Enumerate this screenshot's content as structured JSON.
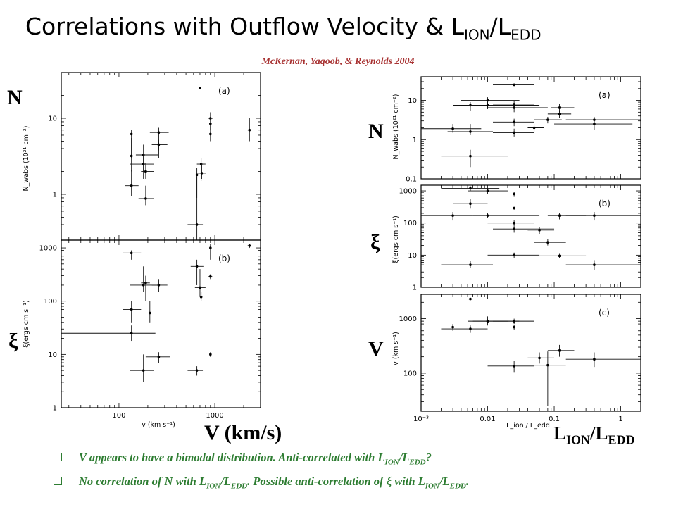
{
  "slide": {
    "title_main": "Correlations with Outflow Velocity & L",
    "title_sub1": "ION",
    "title_slash": "/L",
    "title_sub2": "EDD",
    "credit": "McKernan,  Yaqoob, & Reynolds 2004",
    "label_N_left": "N",
    "label_xi_left": "ξ",
    "label_N_right": "N",
    "label_xi_right": "ξ",
    "label_V_right": "V",
    "xlabel_left_big": "V (km/s)",
    "xlabel_right_big_main": "L",
    "xlabel_right_big_sub1": "ION",
    "xlabel_right_big_slash": "/L",
    "xlabel_right_big_sub2": "EDD",
    "bullets": [
      {
        "pre": "V appears to have a bimodal distribution. Anti-correlated with L",
        "s1": "ION",
        "mid": "/L",
        "s2": "EDD",
        "post": "?"
      },
      {
        "pre": "No correlation of N with L",
        "s1": "ION",
        "mid": "/L",
        "s2": "EDD",
        "post": ". Possible anti-correlation of ξ with L",
        "s3": "ION",
        "mid2": "/L",
        "s4": "EDD",
        "end": "."
      }
    ]
  },
  "chart_data": [
    {
      "type": "scatter",
      "panel": "(a)",
      "xlabel": "v (km s⁻¹)",
      "ylabel": "N_wabs (10²¹ cm⁻²)",
      "xscale": "log",
      "yscale": "log",
      "xlim": [
        25,
        3000
      ],
      "ylim": [
        0.25,
        40
      ],
      "xticks": [
        {
          "v": 100,
          "label": "100"
        },
        {
          "v": 1000,
          "label": "1000"
        }
      ],
      "yticks": [
        {
          "v": 1,
          "label": "1"
        },
        {
          "v": 10,
          "label": "10"
        }
      ],
      "points": [
        {
          "x": 135,
          "y": 6.2,
          "xlo": 115,
          "xhi": 160,
          "ylo": 3.0,
          "yhi": 7.0
        },
        {
          "x": 135,
          "y": 3.2,
          "xlo": 25,
          "xhi": 240,
          "ylo": 2.0,
          "yhi": 5.5
        },
        {
          "x": 135,
          "y": 1.3,
          "xlo": 115,
          "xhi": 160,
          "ylo": 0.95,
          "yhi": 2.1
        },
        {
          "x": 180,
          "y": 3.3,
          "xlo": 150,
          "xhi": 260,
          "ylo": 2.0,
          "yhi": 4.5
        },
        {
          "x": 180,
          "y": 2.5,
          "xlo": 130,
          "xhi": 230,
          "ylo": 1.6,
          "yhi": 3.4
        },
        {
          "x": 190,
          "y": 0.88,
          "xlo": 160,
          "xhi": 230,
          "ylo": 0.72,
          "yhi": 1.3
        },
        {
          "x": 190,
          "y": 2.0,
          "xlo": 170,
          "xhi": 230,
          "ylo": 1.6,
          "yhi": 2.6
        },
        {
          "x": 260,
          "y": 6.5,
          "xlo": 210,
          "xhi": 330,
          "ylo": 3.8,
          "yhi": 7.5
        },
        {
          "x": 260,
          "y": 4.5,
          "xlo": 220,
          "xhi": 320,
          "ylo": 3.0,
          "yhi": 5.2
        },
        {
          "x": 650,
          "y": 0.4,
          "xlo": 520,
          "xhi": 750,
          "ylo": 0.25,
          "yhi": 1.7
        },
        {
          "x": 650,
          "y": 1.8,
          "xlo": 500,
          "xhi": 750,
          "ylo": 0.9,
          "yhi": 2.2
        },
        {
          "x": 700,
          "y": 25,
          "xlo": 690,
          "xhi": 710,
          "ylo": 24,
          "yhi": 26
        },
        {
          "x": 720,
          "y": 2.5,
          "xlo": 650,
          "xhi": 800,
          "ylo": 1.5,
          "yhi": 3.0
        },
        {
          "x": 730,
          "y": 1.9,
          "xlo": 650,
          "xhi": 810,
          "ylo": 1.6,
          "yhi": 2.6
        },
        {
          "x": 900,
          "y": 10,
          "xlo": 850,
          "xhi": 950,
          "ylo": 7,
          "yhi": 12
        },
        {
          "x": 900,
          "y": 8.5,
          "xlo": 880,
          "xhi": 920,
          "ylo": 7,
          "yhi": 10
        },
        {
          "x": 900,
          "y": 6.2,
          "xlo": 880,
          "xhi": 920,
          "ylo": 5,
          "yhi": 7
        },
        {
          "x": 2300,
          "y": 7,
          "xlo": 2200,
          "xhi": 2400,
          "ylo": 5,
          "yhi": 10
        }
      ]
    },
    {
      "type": "scatter",
      "panel": "(b)",
      "xlabel": "v (km s⁻¹)",
      "ylabel": "ξ(ergs cm s⁻¹)",
      "xscale": "log",
      "yscale": "log",
      "xlim": [
        25,
        3000
      ],
      "ylim": [
        1,
        1400
      ],
      "xticks": [
        {
          "v": 100,
          "label": "100"
        },
        {
          "v": 1000,
          "label": "1000"
        }
      ],
      "yticks": [
        {
          "v": 1,
          "label": "1"
        },
        {
          "v": 10,
          "label": "10"
        },
        {
          "v": 100,
          "label": "100"
        },
        {
          "v": 1000,
          "label": "1000"
        }
      ],
      "points": [
        {
          "x": 135,
          "y": 800,
          "xlo": 110,
          "xhi": 170,
          "ylo": 600,
          "yhi": 900
        },
        {
          "x": 135,
          "y": 70,
          "xlo": 110,
          "xhi": 170,
          "ylo": 40,
          "yhi": 100
        },
        {
          "x": 135,
          "y": 25,
          "xlo": 25,
          "xhi": 240,
          "ylo": 18,
          "yhi": 35
        },
        {
          "x": 180,
          "y": 5,
          "xlo": 130,
          "xhi": 230,
          "ylo": 3,
          "yhi": 10
        },
        {
          "x": 180,
          "y": 200,
          "xlo": 130,
          "xhi": 260,
          "ylo": 150,
          "yhi": 450
        },
        {
          "x": 190,
          "y": 220,
          "xlo": 170,
          "xhi": 210,
          "ylo": 100,
          "yhi": 300
        },
        {
          "x": 210,
          "y": 60,
          "xlo": 160,
          "xhi": 260,
          "ylo": 40,
          "yhi": 100
        },
        {
          "x": 260,
          "y": 200,
          "xlo": 220,
          "xhi": 320,
          "ylo": 150,
          "yhi": 260
        },
        {
          "x": 260,
          "y": 9,
          "xlo": 190,
          "xhi": 340,
          "ylo": 7,
          "yhi": 11
        },
        {
          "x": 650,
          "y": 5,
          "xlo": 520,
          "xhi": 750,
          "ylo": 4,
          "yhi": 6
        },
        {
          "x": 650,
          "y": 450,
          "xlo": 560,
          "xhi": 760,
          "ylo": 200,
          "yhi": 600
        },
        {
          "x": 700,
          "y": 180,
          "xlo": 620,
          "xhi": 800,
          "ylo": 120,
          "yhi": 400
        },
        {
          "x": 720,
          "y": 120,
          "xlo": 700,
          "xhi": 740,
          "ylo": 100,
          "yhi": 150
        },
        {
          "x": 900,
          "y": 1000,
          "xlo": 880,
          "xhi": 920,
          "ylo": 600,
          "yhi": 1200
        },
        {
          "x": 900,
          "y": 290,
          "xlo": 860,
          "xhi": 940,
          "ylo": 260,
          "yhi": 320
        },
        {
          "x": 900,
          "y": 10,
          "xlo": 880,
          "xhi": 920,
          "ylo": 9,
          "yhi": 11
        },
        {
          "x": 2300,
          "y": 1100,
          "xlo": 2200,
          "xhi": 2400,
          "ylo": 1000,
          "yhi": 1200
        }
      ]
    },
    {
      "type": "scatter",
      "panel": "(a)",
      "xlabel": "L_ion / L_edd",
      "ylabel": "N_wabs (10²¹ cm⁻²)",
      "xscale": "log",
      "yscale": "log",
      "xlim": [
        0.001,
        2
      ],
      "ylim": [
        0.1,
        40
      ],
      "xticks": [
        {
          "v": 0.001,
          "label": "10⁻³"
        },
        {
          "v": 0.01,
          "label": "0.01"
        },
        {
          "v": 0.1,
          "label": "0.1"
        },
        {
          "v": 1,
          "label": "1"
        }
      ],
      "yticks": [
        {
          "v": 0.1,
          "label": "0.1"
        },
        {
          "v": 1,
          "label": "1"
        },
        {
          "v": 10,
          "label": "10"
        }
      ],
      "points": [
        {
          "x": 0.003,
          "y": 1.9,
          "xlo": 0.001,
          "xhi": 0.008,
          "ylo": 1.5,
          "yhi": 2.5
        },
        {
          "x": 0.0055,
          "y": 7.5,
          "xlo": 0.003,
          "xhi": 0.01,
          "ylo": 5.5,
          "yhi": 9
        },
        {
          "x": 0.0055,
          "y": 1.6,
          "xlo": 0.0025,
          "xhi": 0.012,
          "ylo": 1.3,
          "yhi": 2.5
        },
        {
          "x": 0.0055,
          "y": 0.38,
          "xlo": 0.002,
          "xhi": 0.02,
          "ylo": 0.2,
          "yhi": 0.55
        },
        {
          "x": 0.01,
          "y": 10,
          "xlo": 0.004,
          "xhi": 0.03,
          "ylo": 6,
          "yhi": 12
        },
        {
          "x": 0.01,
          "y": 7.5,
          "xlo": 0.004,
          "xhi": 0.06,
          "ylo": 6,
          "yhi": 9
        },
        {
          "x": 0.025,
          "y": 25,
          "xlo": 0.012,
          "xhi": 0.05,
          "ylo": 23,
          "yhi": 27
        },
        {
          "x": 0.025,
          "y": 8,
          "xlo": 0.012,
          "xhi": 0.05,
          "ylo": 6.5,
          "yhi": 9.5
        },
        {
          "x": 0.025,
          "y": 6.5,
          "xlo": 0.01,
          "xhi": 0.08,
          "ylo": 5,
          "yhi": 8
        },
        {
          "x": 0.025,
          "y": 2.8,
          "xlo": 0.012,
          "xhi": 0.05,
          "ylo": 2.2,
          "yhi": 3.4
        },
        {
          "x": 0.025,
          "y": 1.5,
          "xlo": 0.012,
          "xhi": 0.05,
          "ylo": 1.2,
          "yhi": 1.9
        },
        {
          "x": 0.05,
          "y": 2.0,
          "xlo": 0.04,
          "xhi": 0.07,
          "ylo": 1.6,
          "yhi": 2.5
        },
        {
          "x": 0.08,
          "y": 3.2,
          "xlo": 0.05,
          "xhi": 0.13,
          "ylo": 2.6,
          "yhi": 3.8
        },
        {
          "x": 0.12,
          "y": 6.5,
          "xlo": 0.09,
          "xhi": 0.2,
          "ylo": 5,
          "yhi": 8
        },
        {
          "x": 0.12,
          "y": 4.5,
          "xlo": 0.08,
          "xhi": 0.18,
          "ylo": 3.5,
          "yhi": 5.5
        },
        {
          "x": 0.4,
          "y": 2.5,
          "xlo": 0.1,
          "xhi": 1.5,
          "ylo": 1.8,
          "yhi": 3.4
        },
        {
          "x": 0.4,
          "y": 3.2,
          "xlo": 0.15,
          "xhi": 2.0,
          "ylo": 2.6,
          "yhi": 3.8
        }
      ]
    },
    {
      "type": "scatter",
      "panel": "(b)",
      "xlabel": "L_ion / L_edd",
      "ylabel": "ξ(ergs cm s⁻¹)",
      "xscale": "log",
      "yscale": "log",
      "xlim": [
        0.001,
        2
      ],
      "ylim": [
        1,
        1500
      ],
      "xticks": [
        {
          "v": 0.001,
          "label": ""
        },
        {
          "v": 0.01,
          "label": ""
        },
        {
          "v": 0.1,
          "label": ""
        },
        {
          "v": 1,
          "label": ""
        }
      ],
      "yticks": [
        {
          "v": 1,
          "label": "1"
        },
        {
          "v": 10,
          "label": "10"
        },
        {
          "v": 100,
          "label": "100"
        },
        {
          "v": 1000,
          "label": "1000"
        }
      ],
      "points": [
        {
          "x": 0.003,
          "y": 170,
          "xlo": 0.001,
          "xhi": 0.006,
          "ylo": 120,
          "yhi": 220
        },
        {
          "x": 0.0055,
          "y": 5,
          "xlo": 0.002,
          "xhi": 0.012,
          "ylo": 4,
          "yhi": 6.5
        },
        {
          "x": 0.0055,
          "y": 1200,
          "xlo": 0.002,
          "xhi": 0.015,
          "ylo": 1000,
          "yhi": 1400
        },
        {
          "x": 0.0055,
          "y": 400,
          "xlo": 0.003,
          "xhi": 0.01,
          "ylo": 280,
          "yhi": 550
        },
        {
          "x": 0.01,
          "y": 1000,
          "xlo": 0.005,
          "xhi": 0.02,
          "ylo": 800,
          "yhi": 1200
        },
        {
          "x": 0.01,
          "y": 170,
          "xlo": 0.006,
          "xhi": 0.06,
          "ylo": 140,
          "yhi": 210
        },
        {
          "x": 0.025,
          "y": 800,
          "xlo": 0.01,
          "xhi": 0.04,
          "ylo": 650,
          "yhi": 950
        },
        {
          "x": 0.025,
          "y": 290,
          "xlo": 0.01,
          "xhi": 0.08,
          "ylo": 260,
          "yhi": 320
        },
        {
          "x": 0.025,
          "y": 100,
          "xlo": 0.01,
          "xhi": 0.05,
          "ylo": 80,
          "yhi": 120
        },
        {
          "x": 0.025,
          "y": 65,
          "xlo": 0.012,
          "xhi": 0.1,
          "ylo": 50,
          "yhi": 80
        },
        {
          "x": 0.025,
          "y": 10,
          "xlo": 0.01,
          "xhi": 0.06,
          "ylo": 8,
          "yhi": 12
        },
        {
          "x": 0.06,
          "y": 60,
          "xlo": 0.04,
          "xhi": 0.1,
          "ylo": 45,
          "yhi": 75
        },
        {
          "x": 0.08,
          "y": 25,
          "xlo": 0.05,
          "xhi": 0.15,
          "ylo": 20,
          "yhi": 32
        },
        {
          "x": 0.12,
          "y": 170,
          "xlo": 0.08,
          "xhi": 0.3,
          "ylo": 130,
          "yhi": 210
        },
        {
          "x": 0.12,
          "y": 9.5,
          "xlo": 0.06,
          "xhi": 0.3,
          "ylo": 8,
          "yhi": 11
        },
        {
          "x": 0.4,
          "y": 170,
          "xlo": 0.15,
          "xhi": 2.0,
          "ylo": 120,
          "yhi": 220
        },
        {
          "x": 0.4,
          "y": 5,
          "xlo": 0.15,
          "xhi": 2.0,
          "ylo": 3.5,
          "yhi": 7
        }
      ]
    },
    {
      "type": "scatter",
      "panel": "(c)",
      "xlabel": "L_ion / L_edd",
      "ylabel": "v (km s⁻¹)",
      "xscale": "log",
      "yscale": "log",
      "xlim": [
        0.001,
        2
      ],
      "ylim": [
        20,
        2800
      ],
      "xticks": [
        {
          "v": 0.001,
          "label": "10⁻³"
        },
        {
          "v": 0.01,
          "label": "0.01"
        },
        {
          "v": 0.1,
          "label": "0.1"
        },
        {
          "v": 1,
          "label": "1"
        }
      ],
      "yticks": [
        {
          "v": 100,
          "label": "100"
        },
        {
          "v": 1000,
          "label": "1000"
        }
      ],
      "points": [
        {
          "x": 0.003,
          "y": 700,
          "xlo": 0.001,
          "xhi": 0.006,
          "ylo": 600,
          "yhi": 800
        },
        {
          "x": 0.0055,
          "y": 2300,
          "xlo": 0.005,
          "xhi": 0.006,
          "ylo": 2200,
          "yhi": 2400
        },
        {
          "x": 0.0055,
          "y": 650,
          "xlo": 0.002,
          "xhi": 0.01,
          "ylo": 550,
          "yhi": 750
        },
        {
          "x": 0.01,
          "y": 900,
          "xlo": 0.005,
          "xhi": 0.03,
          "ylo": 750,
          "yhi": 1100
        },
        {
          "x": 0.01,
          "y": 900,
          "xlo": 0.006,
          "xhi": 0.02,
          "ylo": 820,
          "yhi": 980
        },
        {
          "x": 0.025,
          "y": 900,
          "xlo": 0.012,
          "xhi": 0.05,
          "ylo": 800,
          "yhi": 1000
        },
        {
          "x": 0.025,
          "y": 700,
          "xlo": 0.012,
          "xhi": 0.05,
          "ylo": 620,
          "yhi": 780
        },
        {
          "x": 0.025,
          "y": 135,
          "xlo": 0.01,
          "xhi": 0.05,
          "ylo": 105,
          "yhi": 170
        },
        {
          "x": 0.06,
          "y": 190,
          "xlo": 0.04,
          "xhi": 0.1,
          "ylo": 150,
          "yhi": 240
        },
        {
          "x": 0.08,
          "y": 140,
          "xlo": 0.05,
          "xhi": 0.15,
          "ylo": 25,
          "yhi": 250
        },
        {
          "x": 0.12,
          "y": 260,
          "xlo": 0.08,
          "xhi": 0.2,
          "ylo": 200,
          "yhi": 330
        },
        {
          "x": 0.4,
          "y": 180,
          "xlo": 0.15,
          "xhi": 2.0,
          "ylo": 130,
          "yhi": 240
        }
      ]
    }
  ]
}
